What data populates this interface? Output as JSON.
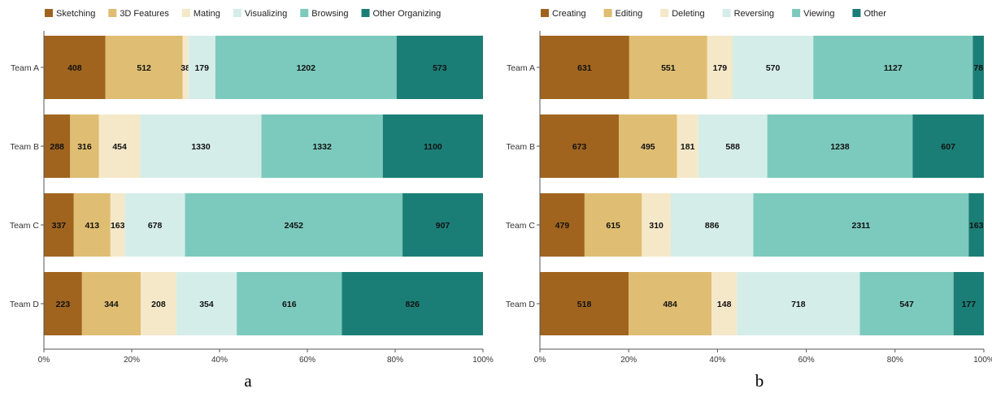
{
  "chart_data": [
    {
      "type": "bar",
      "orientation": "horizontal",
      "stacked": true,
      "normalized": true,
      "panel_label": "a",
      "categories": [
        "Team A",
        "Team B",
        "Team C",
        "Team D"
      ],
      "series": [
        {
          "name": "Sketching",
          "color": "#a0641f",
          "values": [
            408,
            288,
            337,
            223
          ]
        },
        {
          "name": "3D Features",
          "color": "#dfbd72",
          "values": [
            512,
            316,
            413,
            344
          ]
        },
        {
          "name": "Mating",
          "color": "#f5e8c8",
          "values": [
            38,
            454,
            163,
            208
          ]
        },
        {
          "name": "Visualizing",
          "color": "#d5ede9",
          "values": [
            179,
            1330,
            678,
            354
          ]
        },
        {
          "name": "Browsing",
          "color": "#7ccabd",
          "values": [
            1202,
            1332,
            2452,
            616
          ]
        },
        {
          "name": "Other Organizing",
          "color": "#1b7e76",
          "values": [
            573,
            1100,
            907,
            826
          ]
        }
      ],
      "x_ticks": [
        "0%",
        "20%",
        "40%",
        "60%",
        "80%",
        "100%"
      ],
      "xlim": [
        0,
        100
      ],
      "legend": "top",
      "grid": false
    },
    {
      "type": "bar",
      "orientation": "horizontal",
      "stacked": true,
      "normalized": true,
      "panel_label": "b",
      "categories": [
        "Team A",
        "Team B",
        "Team C",
        "Team D"
      ],
      "series": [
        {
          "name": "Creating",
          "color": "#a0641f",
          "values": [
            631,
            673,
            479,
            518
          ]
        },
        {
          "name": "Editing",
          "color": "#dfbd72",
          "values": [
            551,
            495,
            615,
            484
          ]
        },
        {
          "name": "Deleting",
          "color": "#f5e8c8",
          "values": [
            179,
            181,
            310,
            148
          ]
        },
        {
          "name": "Reversing",
          "color": "#d5ede9",
          "values": [
            570,
            588,
            886,
            718
          ]
        },
        {
          "name": "Viewing",
          "color": "#7ccabd",
          "values": [
            1127,
            1238,
            2311,
            547
          ]
        },
        {
          "name": "Other",
          "color": "#1b7e76",
          "values": [
            78,
            607,
            163,
            177
          ]
        }
      ],
      "x_ticks": [
        "0%",
        "20%",
        "40%",
        "60%",
        "80%",
        "100%"
      ],
      "xlim": [
        0,
        100
      ],
      "legend": "top",
      "grid": false
    }
  ]
}
